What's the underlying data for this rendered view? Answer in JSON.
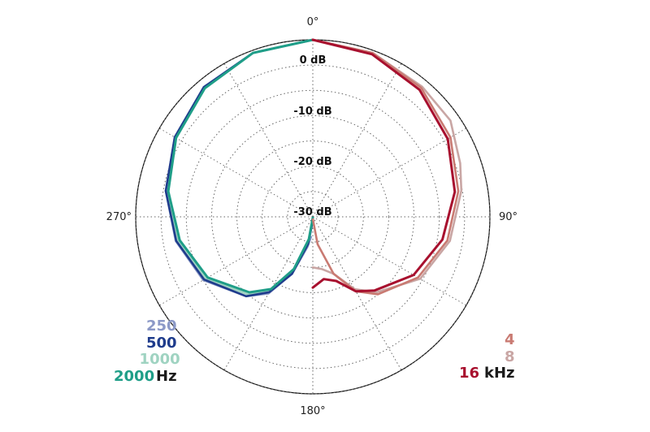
{
  "chart_data": {
    "type": "polar",
    "angle_labels": [
      "0°",
      "90°",
      "180°",
      "270°"
    ],
    "radial_labels": [
      "0 dB",
      "-10 dB",
      "-20 dB",
      "-30 dB"
    ],
    "radial_range_db": [
      -35,
      0
    ],
    "grid": true,
    "legend_left": {
      "unit": "Hz",
      "items": [
        {
          "label": "250",
          "color": "#8c99c7"
        },
        {
          "label": "500",
          "color": "#1f3c8c"
        },
        {
          "label": "1000",
          "color": "#9fd3c1"
        },
        {
          "label": "2000",
          "color": "#1f9e88"
        }
      ]
    },
    "legend_right": {
      "unit": "kHz",
      "items": [
        {
          "label": "4",
          "color": "#c97a72"
        },
        {
          "label": "8",
          "color": "#c9a6a4"
        },
        {
          "label": "16",
          "color": "#a8102e"
        }
      ]
    },
    "series": [
      {
        "name": "250",
        "color": "#8c99c7",
        "side": "left",
        "angles": [
          0,
          20,
          40,
          60,
          80,
          100,
          120,
          140,
          150,
          160,
          170,
          175
        ],
        "db": [
          0,
          -0.5,
          -1.5,
          -3.5,
          -5.5,
          -7.5,
          -10,
          -14.5,
          -17.5,
          -23,
          -29,
          -31
        ]
      },
      {
        "name": "500",
        "color": "#1f3c8c",
        "side": "left",
        "angles": [
          0,
          20,
          40,
          60,
          80,
          100,
          120,
          140,
          150,
          160,
          170,
          178
        ],
        "db": [
          0,
          -0.5,
          -1.5,
          -3.5,
          -5.5,
          -7.6,
          -10.2,
          -14.5,
          -17.8,
          -23,
          -29.5,
          -34
        ]
      },
      {
        "name": "1000",
        "color": "#9fd3c1",
        "side": "left",
        "angles": [
          0,
          20,
          40,
          60,
          80,
          100,
          120,
          140,
          150,
          160,
          170,
          178
        ],
        "db": [
          0,
          -0.5,
          -1.6,
          -3.6,
          -5.8,
          -8,
          -10.5,
          -15,
          -18,
          -23.5,
          -30,
          -34.5
        ]
      },
      {
        "name": "2000",
        "color": "#1f9e88",
        "side": "left",
        "angles": [
          0,
          20,
          40,
          60,
          80,
          100,
          120,
          140,
          150,
          160,
          170,
          178
        ],
        "db": [
          0,
          -0.5,
          -1.8,
          -3.8,
          -6,
          -8.3,
          -11,
          -15.5,
          -18.5,
          -24,
          -30.5,
          -34.8
        ]
      },
      {
        "name": "4",
        "color": "#c97a72",
        "side": "right",
        "angles": [
          0,
          20,
          40,
          60,
          80,
          100,
          120,
          140,
          150,
          160,
          170,
          178
        ],
        "db": [
          0,
          -0.5,
          -1.7,
          -3.6,
          -5.8,
          -8,
          -11,
          -15,
          -18,
          -23,
          -29.5,
          -34.5
        ]
      },
      {
        "name": "8",
        "color": "#c9a6a4",
        "side": "right",
        "angles": [
          0,
          20,
          40,
          55,
          70,
          80,
          100,
          120,
          140,
          150,
          160,
          170,
          180
        ],
        "db": [
          0,
          -0.5,
          -1.4,
          -1.8,
          -4,
          -5.2,
          -7.5,
          -10.5,
          -15.5,
          -18.5,
          -23,
          -24.5,
          -25
        ]
      },
      {
        "name": "16",
        "color": "#a8102e",
        "side": "right",
        "angles": [
          0,
          20,
          40,
          60,
          80,
          100,
          120,
          140,
          150,
          160,
          170,
          180
        ],
        "db": [
          0,
          -0.8,
          -2.2,
          -4.2,
          -6.5,
          -9,
          -12,
          -16,
          -18,
          -21.5,
          -22.5,
          -21
        ]
      }
    ]
  }
}
